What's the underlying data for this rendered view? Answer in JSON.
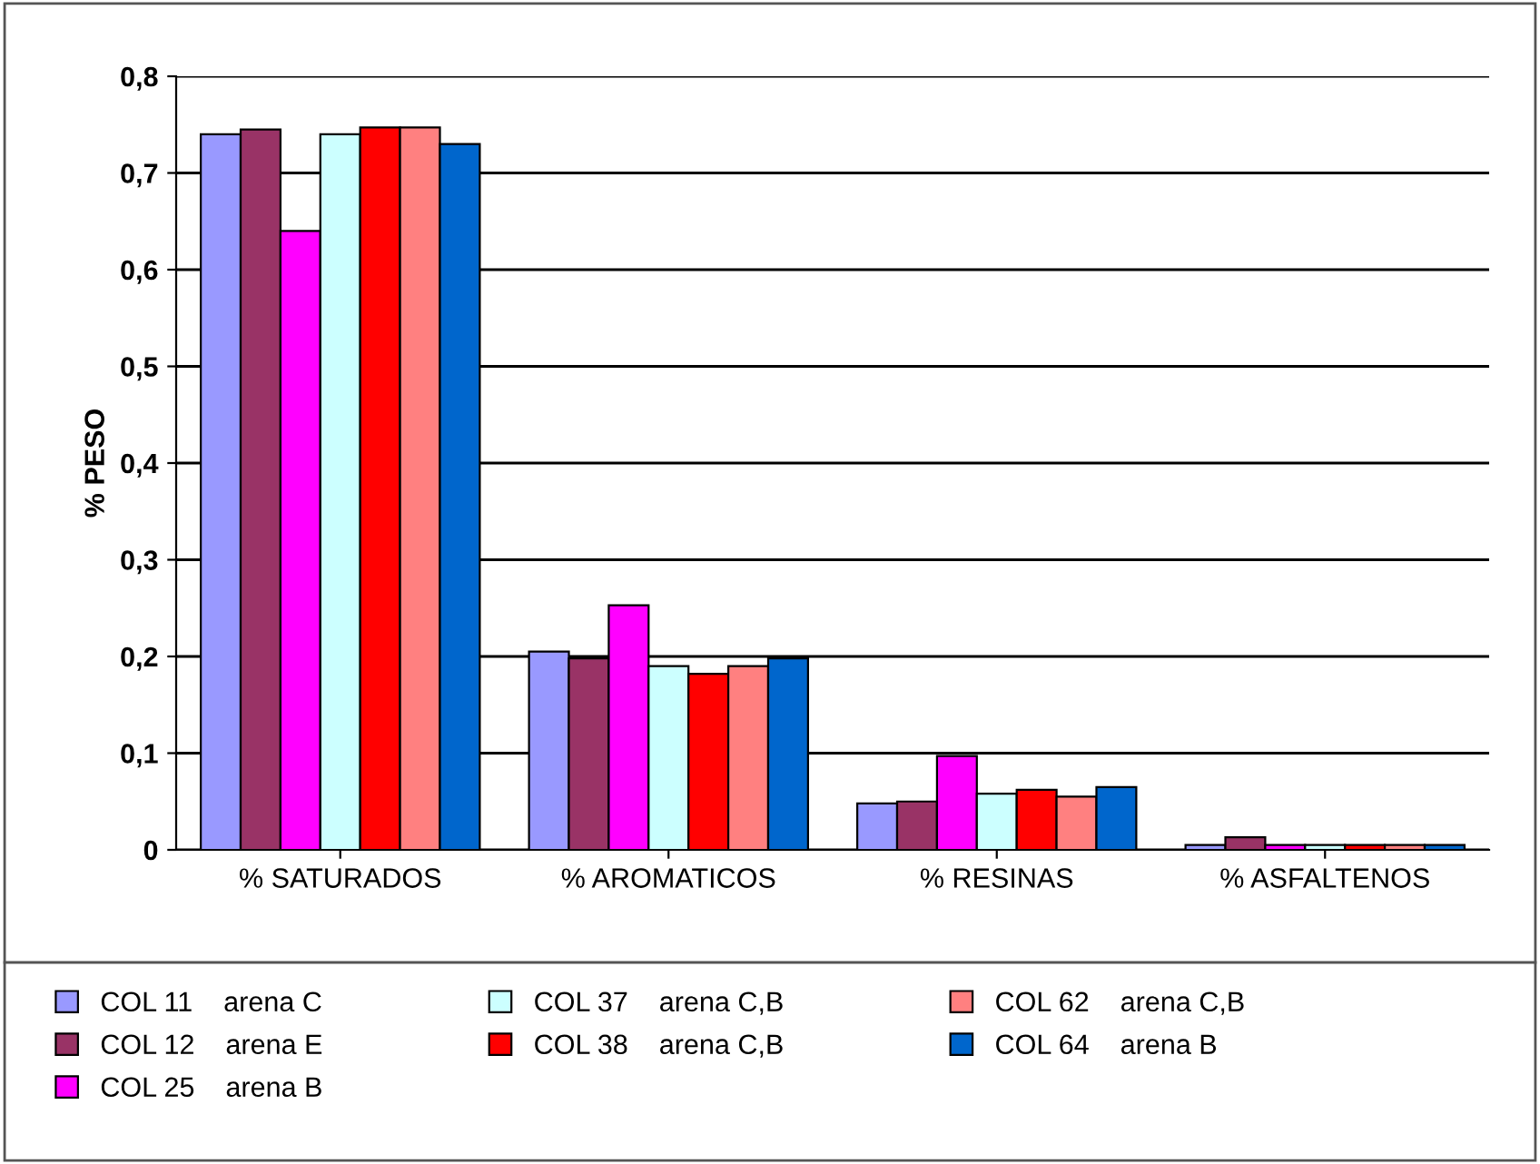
{
  "chart_data": {
    "type": "bar",
    "ylabel": "% PESO",
    "categories": [
      "% SATURADOS",
      "% AROMATICOS",
      "% RESINAS",
      "% ASFALTENOS"
    ],
    "series": [
      {
        "name": "COL 11    arena C",
        "color": "#9999ff",
        "values": [
          0.74,
          0.205,
          0.048,
          0.005
        ]
      },
      {
        "name": "COL 12    arena E",
        "color": "#993366",
        "values": [
          0.745,
          0.198,
          0.05,
          0.013
        ]
      },
      {
        "name": "COL 25    arena B",
        "color": "#ff00ff",
        "values": [
          0.64,
          0.253,
          0.097,
          0.005
        ]
      },
      {
        "name": "COL 37    arena C,B",
        "color": "#ccffff",
        "values": [
          0.74,
          0.19,
          0.058,
          0.005
        ]
      },
      {
        "name": "COL 38    arena C,B",
        "color": "#ff0000",
        "values": [
          0.747,
          0.182,
          0.062,
          0.005
        ]
      },
      {
        "name": "COL 62    arena C,B",
        "color": "#ff8080",
        "values": [
          0.747,
          0.19,
          0.055,
          0.005
        ]
      },
      {
        "name": "COL 64    arena B",
        "color": "#0066cc",
        "values": [
          0.73,
          0.198,
          0.065,
          0.005
        ]
      }
    ],
    "ylim": [
      0,
      0.8
    ],
    "yticks": [
      {
        "value": 0,
        "label": "0"
      },
      {
        "value": 0.1,
        "label": "0,1"
      },
      {
        "value": 0.2,
        "label": "0,2"
      },
      {
        "value": 0.3,
        "label": "0,3"
      },
      {
        "value": 0.4,
        "label": "0,4"
      },
      {
        "value": 0.5,
        "label": "0,5"
      },
      {
        "value": 0.6,
        "label": "0,6"
      },
      {
        "value": 0.7,
        "label": "0,7"
      },
      {
        "value": 0.8,
        "label": "0,8"
      }
    ],
    "grid": "y",
    "legend": "bottom"
  }
}
